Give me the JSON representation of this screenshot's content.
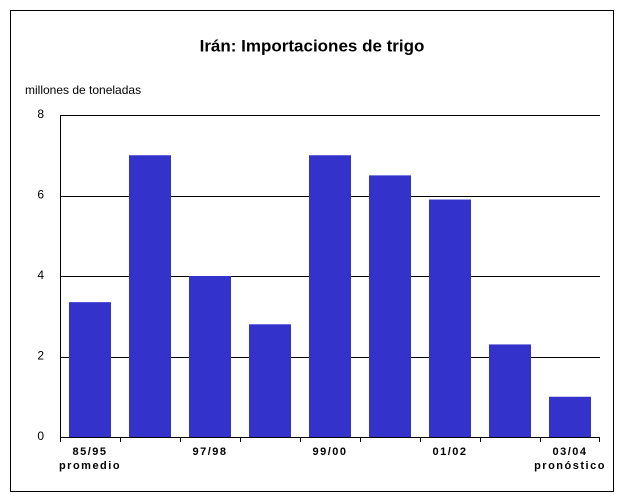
{
  "chart_data": {
    "type": "bar",
    "title": "Irán: Importaciones de trigo",
    "y_label": "millones de toneladas",
    "categories": [
      "85/95",
      null,
      "97/98",
      null,
      "99/00",
      null,
      "01/02",
      null,
      "03/04"
    ],
    "category_sublabels": [
      "promedio",
      null,
      null,
      null,
      null,
      null,
      null,
      null,
      "pronóstico"
    ],
    "values": [
      3.35,
      7.0,
      4.0,
      2.8,
      7.0,
      6.5,
      5.9,
      2.3,
      1.0
    ],
    "color": "#3333cc",
    "ylim": [
      0,
      8
    ],
    "yticks": [
      0,
      2,
      4,
      6,
      8
    ],
    "grid": true
  }
}
